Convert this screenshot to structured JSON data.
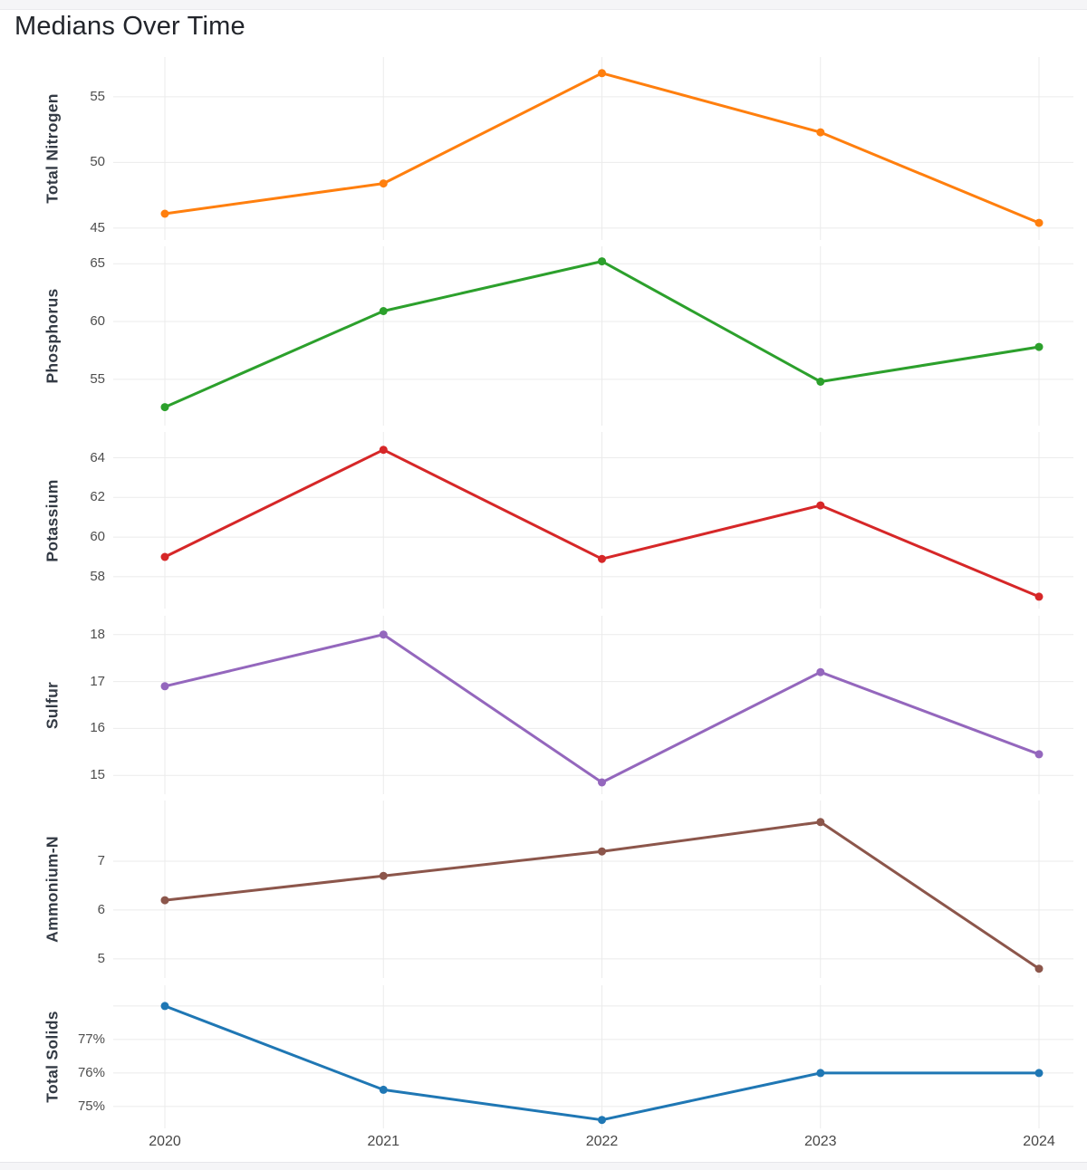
{
  "chart_data": {
    "type": "line",
    "title": "Medians Over Time",
    "categories": [
      "2020",
      "2021",
      "2022",
      "2023",
      "2024"
    ],
    "legend": "none",
    "grid": true,
    "layout": "6 stacked facet panels sharing x axis",
    "facets": [
      {
        "name": "Total Nitrogen",
        "color": "#ff7f0e",
        "values": [
          46.1,
          48.4,
          56.8,
          52.3,
          45.4
        ],
        "tick_values": [
          45,
          50,
          55
        ],
        "tick_labels": [
          "45",
          "50",
          "55"
        ],
        "ylim": [
          44.1,
          58.03
        ]
      },
      {
        "name": "Phosphorus",
        "color": "#2ca02c",
        "values": [
          52.6,
          60.9,
          65.2,
          54.8,
          57.8
        ],
        "tick_values": [
          55,
          60,
          65
        ],
        "tick_labels": [
          "55",
          "60",
          "65"
        ],
        "ylim": [
          51.0,
          66.5
        ]
      },
      {
        "name": "Potassium",
        "color": "#d62728",
        "values": [
          59.0,
          64.4,
          58.9,
          61.6,
          57.0
        ],
        "tick_values": [
          58,
          60,
          62,
          64
        ],
        "tick_labels": [
          "58",
          "60",
          "62",
          "64"
        ],
        "ylim": [
          56.4,
          65.3
        ]
      },
      {
        "name": "Sulfur",
        "color": "#9467bd",
        "values": [
          16.9,
          18.0,
          14.85,
          17.2,
          15.45
        ],
        "tick_values": [
          15,
          16,
          17,
          18
        ],
        "tick_labels": [
          "15",
          "16",
          "17",
          "18"
        ],
        "ylim": [
          14.6,
          18.4
        ]
      },
      {
        "name": "Ammonium-N",
        "color": "#8c564b",
        "values": [
          6.2,
          6.7,
          7.2,
          7.8,
          4.8
        ],
        "tick_values": [
          5,
          6,
          7
        ],
        "tick_labels": [
          "5",
          "6",
          "7"
        ],
        "ylim": [
          4.61,
          8.24
        ]
      },
      {
        "name": "Total Solids",
        "color": "#1f77b4",
        "values": [
          78.0,
          75.5,
          74.6,
          76.0,
          76.0
        ],
        "tick_values": [
          75,
          76,
          77,
          78
        ],
        "tick_labels": [
          "75%",
          "76%",
          "77%",
          ""
        ],
        "ylim": [
          74.35,
          78.62
        ]
      }
    ],
    "colors": {
      "gridline": "#ebebeb",
      "title_text": "#22252b",
      "facet_label_text": "#333a44",
      "tick_text": "#4e4e4e"
    }
  }
}
